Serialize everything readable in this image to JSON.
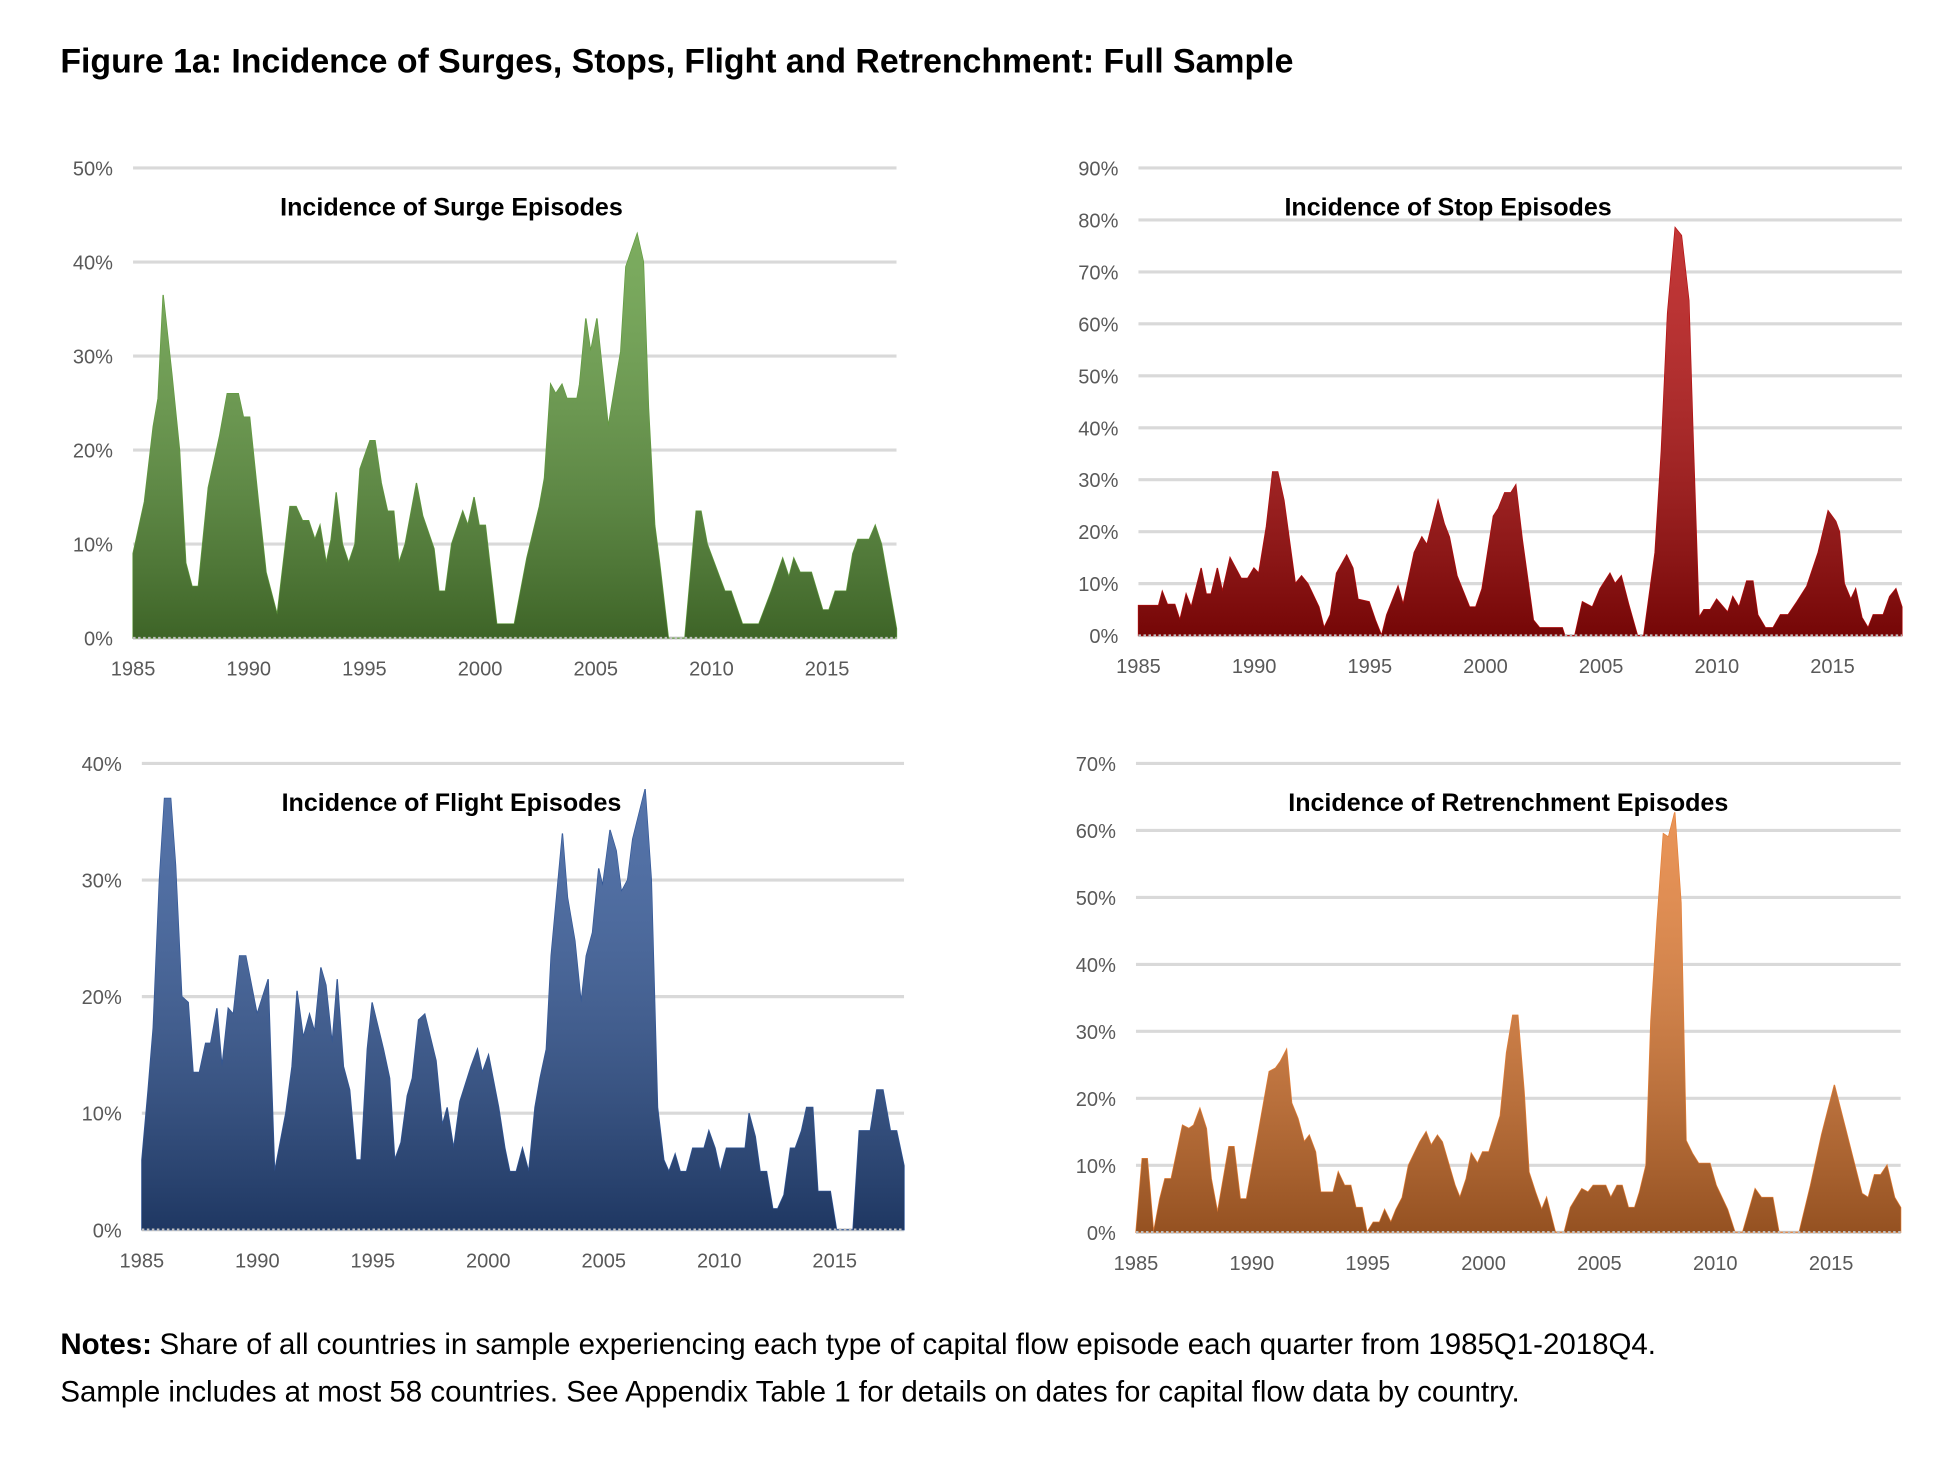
{
  "title": "Figure 1a: Incidence of Surges, Stops, Flight and Retrenchment: Full Sample",
  "chart_data": [
    {
      "type": "area",
      "title": "Incidence of Surge Episodes",
      "color": "#5f9a3c",
      "x": [
        1985.0,
        1985.49,
        1985.87,
        1986.08,
        1986.3,
        1986.68,
        1987.01,
        1987.28,
        1987.55,
        1987.82,
        1988.25,
        1988.74,
        1989.07,
        1989.55,
        1989.77,
        1990.04,
        1990.42,
        1990.75,
        1991.23,
        1991.78,
        1992.05,
        1992.32,
        1992.59,
        1992.86,
        1993.08,
        1993.35,
        1993.56,
        1993.78,
        1994.05,
        1994.32,
        1994.59,
        1994.81,
        1995.24,
        1995.46,
        1995.73,
        1996.0,
        1996.27,
        1996.49,
        1996.76,
        1997.25,
        1997.52,
        1998.01,
        1998.22,
        1998.5,
        1998.77,
        1999.25,
        1999.47,
        1999.74,
        1999.96,
        2000.23,
        2000.72,
        2001.48,
        2002.02,
        2002.56,
        2002.78,
        2003.05,
        2003.27,
        2003.54,
        2003.75,
        2004.19,
        2004.3,
        2004.57,
        2004.78,
        2005.05,
        2005.54,
        2005.81,
        2006.08,
        2006.3,
        2006.79,
        2007.06,
        2007.28,
        2007.55,
        2007.76,
        2008.14,
        2008.85,
        2009.34,
        2009.55,
        2009.82,
        2010.58,
        2010.85,
        2011.34,
        2012.05,
        2012.59,
        2013.08,
        2013.35,
        2013.56,
        2013.83,
        2014.32,
        2014.81,
        2015.08,
        2015.35,
        2015.84,
        2016.11,
        2016.33,
        2016.82,
        2017.08,
        2017.35,
        2018
      ],
      "values": [
        9,
        14.5,
        22.5,
        25.5,
        36.5,
        28,
        20,
        8,
        5.5,
        5.5,
        16,
        21.5,
        26,
        26,
        23.5,
        23.5,
        14.5,
        7,
        2.5,
        14,
        14,
        12.5,
        12.5,
        10.5,
        12,
        8,
        10.5,
        15.5,
        10,
        8,
        10,
        18,
        21,
        21,
        16.5,
        13.5,
        13.5,
        8,
        10,
        16.5,
        13,
        9.5,
        5,
        5,
        10,
        13.5,
        12,
        15,
        12,
        12,
        1.5,
        1.5,
        8.5,
        14,
        17,
        27,
        26,
        27,
        25.5,
        25.5,
        27,
        34,
        30.5,
        34,
        22.5,
        26.5,
        30.5,
        39.5,
        43,
        40,
        24.5,
        12,
        8,
        0,
        0,
        13.5,
        13.5,
        10,
        5,
        5,
        1.5,
        1.5,
        5,
        8.5,
        6.5,
        8.5,
        7,
        7,
        3,
        3,
        5,
        5,
        9,
        10.5,
        10.5,
        12,
        10,
        1
      ],
      "xlim": [
        1985,
        2018
      ],
      "xticks": [
        1985,
        1990,
        1995,
        2000,
        2005,
        2010,
        2015
      ],
      "ylim": [
        0,
        50
      ],
      "yticks": [
        {
          "value": 0,
          "label": "0%"
        },
        {
          "value": 10,
          "label": "10%"
        },
        {
          "value": 20,
          "label": "20%"
        },
        {
          "value": 30,
          "label": "30%"
        },
        {
          "value": 40,
          "label": "40%"
        },
        {
          "value": 50,
          "label": "50%"
        }
      ],
      "grid": true
    },
    {
      "type": "area",
      "title": "Incidence of Stop Episodes",
      "color": "#b50a0a",
      "x": [
        1985.0,
        1985.87,
        1986.03,
        1986.25,
        1986.57,
        1986.79,
        1987.06,
        1987.28,
        1987.71,
        1987.93,
        1988.14,
        1988.41,
        1988.63,
        1988.96,
        1989.44,
        1989.72,
        1989.99,
        1990.2,
        1990.53,
        1990.8,
        1991.02,
        1991.29,
        1991.78,
        1992.05,
        1992.32,
        1992.8,
        1993.02,
        1993.29,
        1993.56,
        1994.0,
        1994.27,
        1994.49,
        1994.97,
        1995.24,
        1995.51,
        1995.73,
        1996.22,
        1996.44,
        1996.92,
        1997.25,
        1997.47,
        1997.95,
        1998.22,
        1998.44,
        1998.77,
        1999.31,
        1999.58,
        1999.85,
        2000.34,
        2000.56,
        2000.83,
        2001.1,
        2001.31,
        2001.59,
        2002.07,
        2002.34,
        2003.32,
        2003.43,
        2003.86,
        2004.19,
        2004.62,
        2004.95,
        2005.38,
        2005.6,
        2005.87,
        2006.19,
        2006.57,
        2006.84,
        2007.33,
        2007.6,
        2007.87,
        2008.2,
        2008.47,
        2008.79,
        2008.96,
        2009.23,
        2009.44,
        2009.72,
        2009.99,
        2010.47,
        2010.69,
        2010.96,
        2011.29,
        2011.56,
        2011.77,
        2012.1,
        2012.43,
        2012.75,
        2013.08,
        2013.46,
        2013.89,
        2014.38,
        2014.81,
        2015.14,
        2015.3,
        2015.51,
        2015.79,
        2016.0,
        2016.27,
        2016.54,
        2016.76,
        2017.19,
        2017.47,
        2017.74,
        2018
      ],
      "values": [
        5.8,
        5.8,
        8.5,
        6,
        6,
        3,
        8,
        5.5,
        13,
        8,
        8,
        13,
        8.5,
        15,
        11,
        11,
        13,
        12,
        21,
        31.5,
        31.5,
        26,
        10,
        11.5,
        10,
        5.5,
        1.5,
        4,
        12,
        15.5,
        13,
        7,
        6.5,
        3,
        0,
        4,
        9.5,
        6,
        16,
        19,
        17.5,
        26,
        21.5,
        19,
        11.5,
        5.5,
        5.5,
        9,
        23,
        24.5,
        27.5,
        27.5,
        29,
        18.5,
        3,
        1.5,
        1.5,
        0,
        0,
        6.5,
        5.5,
        9,
        12,
        10,
        11.5,
        6,
        0,
        0,
        16,
        35.5,
        62,
        78.5,
        77,
        64.5,
        40,
        3.5,
        5,
        5,
        7,
        4.5,
        7.5,
        5.5,
        10.5,
        10.5,
        4,
        1.5,
        1.5,
        4,
        4,
        6.5,
        9.5,
        16,
        24,
        22,
        20,
        10,
        7,
        9,
        3.5,
        1.5,
        4,
        4,
        7.5,
        9,
        5.5
      ],
      "xlim": [
        1985,
        2018
      ],
      "xticks": [
        1985,
        1990,
        1995,
        2000,
        2005,
        2010,
        2015
      ],
      "ylim": [
        0,
        90
      ],
      "yticks": [
        {
          "value": 0,
          "label": "0%"
        },
        {
          "value": 10,
          "label": "10%"
        },
        {
          "value": 20,
          "label": "20%"
        },
        {
          "value": 30,
          "label": "30%"
        },
        {
          "value": 40,
          "label": "40%"
        },
        {
          "value": 50,
          "label": "50%"
        },
        {
          "value": 60,
          "label": "60%"
        },
        {
          "value": 70,
          "label": "70%"
        },
        {
          "value": 80,
          "label": "80%"
        },
        {
          "value": 90,
          "label": "90%"
        }
      ],
      "grid": true
    },
    {
      "type": "area",
      "title": "Incidence of Flight Episodes",
      "color": "#2f5597",
      "x": [
        1985.0,
        1985.27,
        1985.49,
        1985.76,
        1985.98,
        1986.25,
        1986.46,
        1986.73,
        1987.01,
        1987.22,
        1987.49,
        1987.76,
        1987.98,
        1988.25,
        1988.47,
        1988.74,
        1988.96,
        1989.23,
        1989.5,
        1989.99,
        1990.47,
        1990.75,
        1991.23,
        1991.5,
        1991.72,
        1991.99,
        1992.26,
        1992.48,
        1992.75,
        1992.97,
        1993.24,
        1993.46,
        1993.73,
        1994.0,
        1994.27,
        1994.49,
        1994.76,
        1994.97,
        1995.46,
        1995.73,
        1995.95,
        1996.22,
        1996.49,
        1996.71,
        1996.98,
        1997.25,
        1997.74,
        1998.01,
        1998.22,
        1998.5,
        1998.77,
        1999.25,
        1999.53,
        1999.74,
        2000.01,
        2000.45,
        2000.72,
        2000.93,
        2001.21,
        2001.48,
        2001.75,
        2002.02,
        2002.24,
        2002.51,
        2002.72,
        2003.21,
        2003.43,
        2003.75,
        2004.02,
        2004.24,
        2004.51,
        2004.78,
        2004.95,
        2005.27,
        2005.54,
        2005.76,
        2006.03,
        2006.25,
        2006.79,
        2007.06,
        2007.33,
        2007.6,
        2007.82,
        2008.09,
        2008.31,
        2008.58,
        2008.85,
        2009.34,
        2009.55,
        2009.82,
        2010.04,
        2010.31,
        2010.58,
        2010.85,
        2011.12,
        2011.29,
        2011.56,
        2011.77,
        2012.05,
        2012.32,
        2012.53,
        2012.8,
        2013.08,
        2013.29,
        2013.56,
        2013.78,
        2014.05,
        2014.27,
        2014.81,
        2015.08,
        2015.79,
        2016.06,
        2016.54,
        2016.82,
        2017.09,
        2017.41,
        2017.68,
        2018
      ],
      "values": [
        6,
        12,
        17.3,
        30,
        37,
        37,
        31.3,
        20,
        19.5,
        13.5,
        13.5,
        16,
        16,
        19,
        14,
        19,
        18.5,
        23.5,
        23.5,
        18.5,
        21.5,
        5,
        10,
        14,
        20.5,
        16.5,
        18.5,
        17,
        22.5,
        21,
        16,
        21.5,
        14,
        12,
        6,
        6,
        15.5,
        19.5,
        15.5,
        13,
        6,
        7.5,
        11.5,
        13,
        18,
        18.5,
        14.5,
        9,
        10.5,
        7,
        11,
        14,
        15.5,
        13.5,
        15,
        10.5,
        7,
        5,
        5,
        7,
        5,
        10.5,
        13,
        15.5,
        23.5,
        34,
        28.5,
        24.8,
        19.5,
        23.5,
        25.5,
        31,
        29.5,
        34.3,
        32.5,
        29,
        30,
        33.5,
        37.8,
        30,
        10.5,
        6,
        5,
        6.5,
        5,
        5,
        7,
        7,
        8.5,
        7,
        5,
        7,
        7,
        7,
        7,
        10,
        8,
        5,
        5,
        1.8,
        1.8,
        3,
        7,
        7,
        8.5,
        10.5,
        10.5,
        3.3,
        3.3,
        0,
        0,
        8.5,
        8.5,
        12,
        12,
        8.5,
        8.5,
        5.5
      ],
      "xlim": [
        1985,
        2018
      ],
      "xticks": [
        1985,
        1990,
        1995,
        2000,
        2005,
        2010,
        2015
      ],
      "ylim": [
        0,
        40
      ],
      "yticks": [
        {
          "value": 0,
          "label": "0%"
        },
        {
          "value": 10,
          "label": "10%"
        },
        {
          "value": 20,
          "label": "20%"
        },
        {
          "value": 30,
          "label": "30%"
        },
        {
          "value": 40,
          "label": "40%"
        }
      ],
      "grid": true
    },
    {
      "type": "area",
      "title": "Incidence of Retrenchment Episodes",
      "color": "#e57d33",
      "x": [
        1985.0,
        1985.27,
        1985.49,
        1985.76,
        1986.03,
        1986.25,
        1986.52,
        1987.01,
        1987.28,
        1987.49,
        1987.76,
        1988.04,
        1988.25,
        1988.52,
        1989.01,
        1989.23,
        1989.5,
        1989.77,
        1990.26,
        1990.75,
        1991.02,
        1991.23,
        1991.5,
        1991.72,
        1991.99,
        1992.26,
        1992.48,
        1992.75,
        1992.97,
        1993.24,
        1993.51,
        1993.73,
        1994.0,
        1994.27,
        1994.49,
        1994.76,
        1994.97,
        1995.24,
        1995.51,
        1995.73,
        1996.0,
        1996.22,
        1996.49,
        1996.76,
        1997.25,
        1997.52,
        1997.74,
        1998.01,
        1998.22,
        1998.77,
        1998.98,
        1999.25,
        1999.47,
        1999.74,
        1999.96,
        2000.23,
        2000.72,
        2000.99,
        2001.26,
        2001.48,
        2001.75,
        2001.96,
        2002.24,
        2002.51,
        2002.72,
        2002.99,
        2003.1,
        2003.48,
        2003.75,
        2004.24,
        2004.51,
        2004.73,
        2005.27,
        2005.49,
        2005.76,
        2005.98,
        2006.25,
        2006.52,
        2006.73,
        2007.01,
        2007.22,
        2007.49,
        2007.76,
        2007.98,
        2008.25,
        2008.52,
        2008.74,
        2009.01,
        2009.28,
        2009.77,
        2010.04,
        2010.53,
        2010.85,
        2011.18,
        2011.72,
        2011.99,
        2012.48,
        2012.75,
        2013.62,
        2014.11,
        2014.59,
        2015.14,
        2015.62,
        2015.89,
        2016.33,
        2016.6,
        2016.87,
        2017.14,
        2017.41,
        2017.74,
        2018
      ],
      "values": [
        0,
        11,
        11,
        0,
        5,
        8,
        8,
        16,
        15.5,
        16,
        18.5,
        15.5,
        8,
        3,
        12.8,
        12.8,
        5,
        5,
        14.5,
        24,
        24.5,
        25.5,
        27.3,
        19.3,
        17,
        13.5,
        14.5,
        12,
        6,
        6,
        6,
        9,
        7,
        7,
        3.7,
        3.7,
        0,
        1.5,
        1.5,
        3.4,
        1.5,
        3.4,
        5.2,
        10,
        13.5,
        15,
        13,
        14.5,
        13.5,
        7,
        5.2,
        8,
        11.8,
        10.3,
        12,
        12,
        17.4,
        26.8,
        32.4,
        32.4,
        21,
        9,
        6,
        3.4,
        5.2,
        1.5,
        0,
        0,
        3.7,
        6.5,
        6,
        7,
        7,
        5.2,
        7,
        7,
        3.7,
        3.7,
        6,
        10,
        31.5,
        46.4,
        59.5,
        59,
        62.7,
        49.2,
        13.7,
        11.8,
        10.3,
        10.3,
        7,
        3.4,
        0,
        0,
        6.5,
        5.2,
        5.2,
        0,
        0,
        7,
        14.6,
        22,
        15.5,
        11.8,
        5.8,
        5.2,
        8.6,
        8.6,
        10,
        5.2,
        3.7
      ],
      "xlim": [
        1985,
        2018
      ],
      "xticks": [
        1985,
        1990,
        1995,
        2000,
        2005,
        2010,
        2015
      ],
      "ylim": [
        0,
        70
      ],
      "yticks": [
        {
          "value": 0,
          "label": "0%"
        },
        {
          "value": 10,
          "label": "10%"
        },
        {
          "value": 20,
          "label": "20%"
        },
        {
          "value": 30,
          "label": "30%"
        },
        {
          "value": 40,
          "label": "40%"
        },
        {
          "value": 50,
          "label": "50%"
        },
        {
          "value": 60,
          "label": "60%"
        },
        {
          "value": 70,
          "label": "70%"
        }
      ],
      "grid": true
    }
  ],
  "notes": {
    "label": "Notes:",
    "lines": [
      "Share of all countries in sample experiencing each type of capital flow episode each quarter from 1985Q1-2018Q4.",
      "Sample includes at most 58 countries. See Appendix Table 1 for details on dates for capital flow data by country."
    ]
  }
}
